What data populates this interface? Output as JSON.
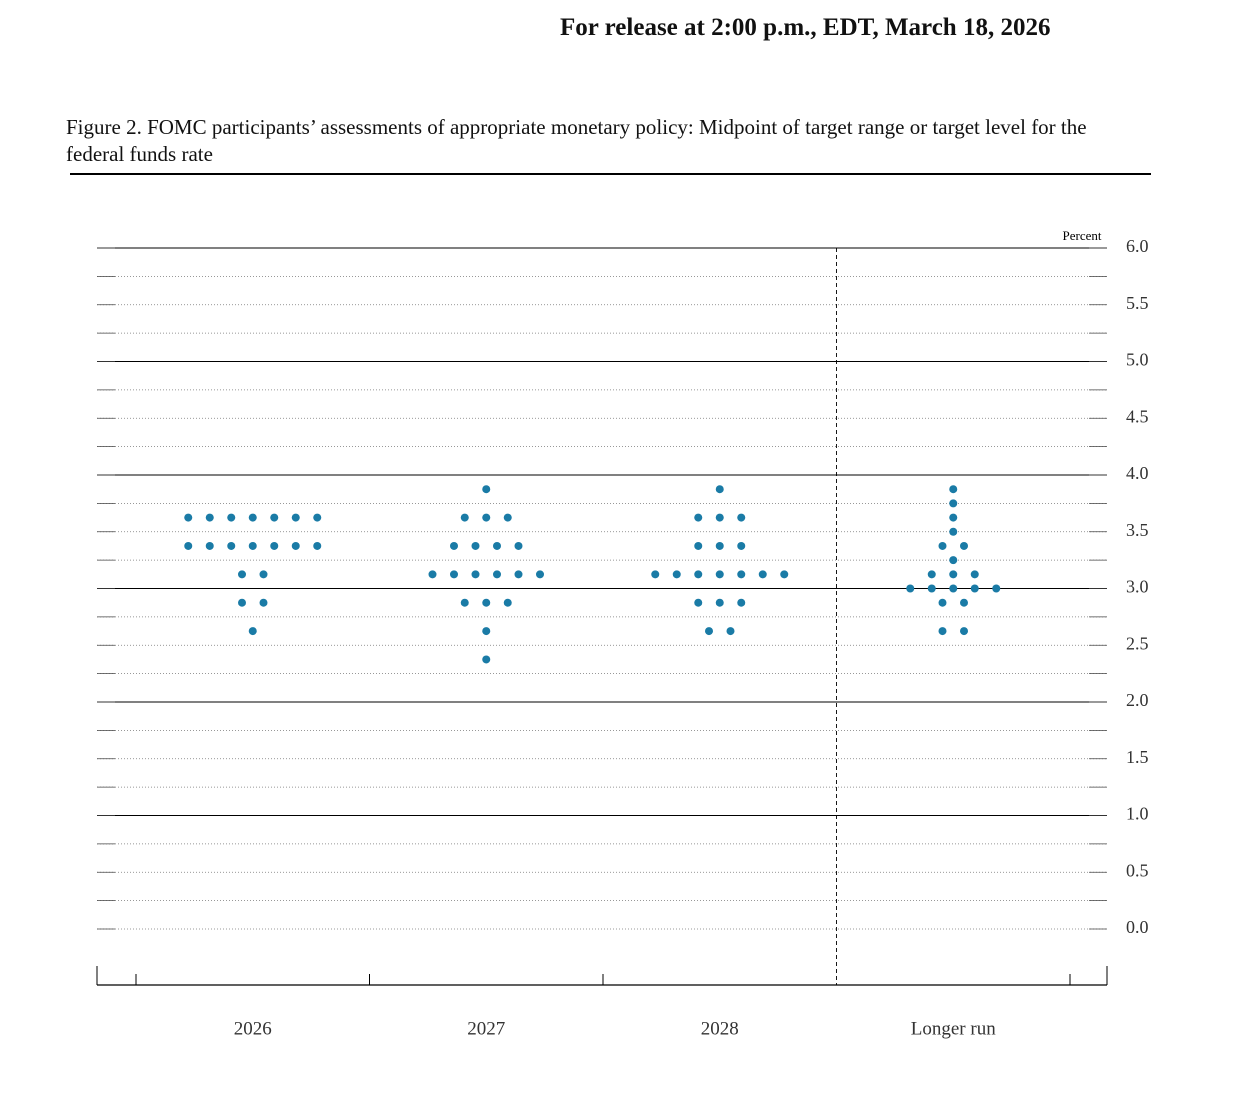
{
  "release_note": "For release at 2:00 p.m., EDT, March 18, 2026",
  "chart_data": {
    "type": "dot",
    "title": "Figure 2. FOMC participants’ assessments of appropriate monetary policy: Midpoint of target range or target level for the federal funds rate",
    "y_label": "Percent",
    "color": "#1a7ba6",
    "ylim": [
      0,
      6
    ],
    "yticks": [
      {
        "value": 0,
        "label": "0.0"
      },
      {
        "value": 0.5,
        "label": "0.5"
      },
      {
        "value": 1,
        "label": "1.0"
      },
      {
        "value": 1.5,
        "label": "1.5"
      },
      {
        "value": 2,
        "label": "2.0"
      },
      {
        "value": 2.5,
        "label": "2.5"
      },
      {
        "value": 3,
        "label": "3.0"
      },
      {
        "value": 3.5,
        "label": "3.5"
      },
      {
        "value": 4,
        "label": "4.0"
      },
      {
        "value": 4.5,
        "label": "4.5"
      },
      {
        "value": 5,
        "label": "5.0"
      },
      {
        "value": 5.5,
        "label": "5.5"
      },
      {
        "value": 6,
        "label": "6.0"
      }
    ],
    "categories": [
      "2026",
      "2027",
      "2028",
      "Longer run"
    ],
    "dots": [
      [
        3.625,
        3.625,
        3.625,
        3.625,
        3.625,
        3.625,
        3.625,
        3.375,
        3.375,
        3.375,
        3.375,
        3.375,
        3.375,
        3.375,
        3.125,
        3.125,
        2.875,
        2.875,
        2.625
      ],
      [
        3.875,
        3.625,
        3.625,
        3.625,
        3.375,
        3.375,
        3.375,
        3.375,
        3.125,
        3.125,
        3.125,
        3.125,
        3.125,
        3.125,
        2.875,
        2.875,
        2.875,
        2.625,
        2.375
      ],
      [
        3.875,
        3.625,
        3.625,
        3.625,
        3.375,
        3.375,
        3.375,
        3.125,
        3.125,
        3.125,
        3.125,
        3.125,
        3.125,
        3.125,
        2.875,
        2.875,
        2.875,
        2.625,
        2.625
      ],
      [
        3.875,
        3.75,
        3.625,
        3.5,
        3.375,
        3.375,
        3.25,
        3.125,
        3.125,
        3.125,
        3,
        3,
        3,
        3,
        3,
        2.875,
        2.875,
        2.625,
        2.625
      ]
    ]
  }
}
